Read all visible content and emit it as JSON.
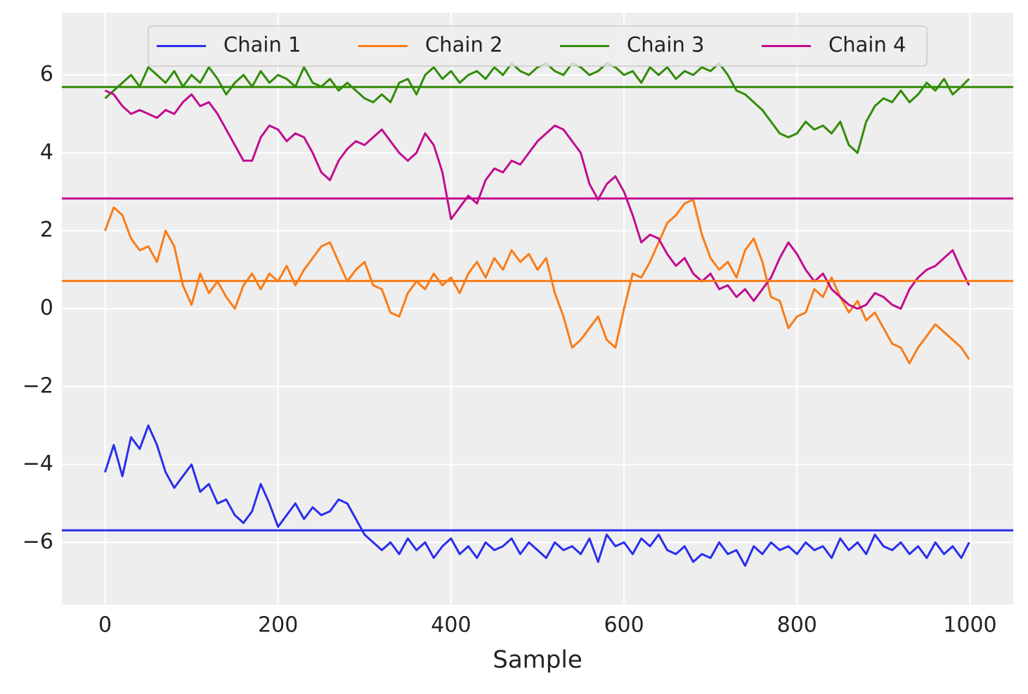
{
  "chart_data": {
    "type": "line",
    "xlabel": "Sample",
    "x": [
      0,
      10,
      20,
      30,
      40,
      50,
      60,
      70,
      80,
      90,
      100,
      110,
      120,
      130,
      140,
      150,
      160,
      170,
      180,
      190,
      200,
      210,
      220,
      230,
      240,
      250,
      260,
      270,
      280,
      290,
      300,
      310,
      320,
      330,
      340,
      350,
      360,
      370,
      380,
      390,
      400,
      410,
      420,
      430,
      440,
      450,
      460,
      470,
      480,
      490,
      500,
      510,
      520,
      530,
      540,
      550,
      560,
      570,
      580,
      590,
      600,
      610,
      620,
      630,
      640,
      650,
      660,
      670,
      680,
      690,
      700,
      710,
      720,
      730,
      740,
      750,
      760,
      770,
      780,
      790,
      800,
      810,
      820,
      830,
      840,
      850,
      860,
      870,
      880,
      890,
      900,
      910,
      920,
      930,
      940,
      950,
      960,
      970,
      980,
      990,
      999
    ],
    "series": [
      {
        "name": "Chain 1",
        "color": "#2a2eec",
        "mean": -5.69,
        "values": [
          -4.2,
          -3.5,
          -4.3,
          -3.3,
          -3.6,
          -3.0,
          -3.5,
          -4.2,
          -4.6,
          -4.3,
          -4.0,
          -4.7,
          -4.5,
          -5.0,
          -4.9,
          -5.3,
          -5.5,
          -5.2,
          -4.5,
          -5.0,
          -5.6,
          -5.3,
          -5.0,
          -5.4,
          -5.1,
          -5.3,
          -5.2,
          -4.9,
          -5.0,
          -5.4,
          -5.8,
          -6.0,
          -6.2,
          -6.0,
          -6.3,
          -5.9,
          -6.2,
          -6.0,
          -6.4,
          -6.1,
          -5.9,
          -6.3,
          -6.1,
          -6.4,
          -6.0,
          -6.2,
          -6.1,
          -5.9,
          -6.3,
          -6.0,
          -6.2,
          -6.4,
          -6.0,
          -6.2,
          -6.1,
          -6.3,
          -5.9,
          -6.5,
          -5.8,
          -6.1,
          -6.0,
          -6.3,
          -5.9,
          -6.1,
          -5.8,
          -6.2,
          -6.3,
          -6.1,
          -6.5,
          -6.3,
          -6.4,
          -6.0,
          -6.3,
          -6.2,
          -6.6,
          -6.1,
          -6.3,
          -6.0,
          -6.2,
          -6.1,
          -6.3,
          -6.0,
          -6.2,
          -6.1,
          -6.4,
          -5.9,
          -6.2,
          -6.0,
          -6.3,
          -5.8,
          -6.1,
          -6.2,
          -6.0,
          -6.3,
          -6.1,
          -6.4,
          -6.0,
          -6.3,
          -6.1,
          -6.4,
          -6.0
        ]
      },
      {
        "name": "Chain 2",
        "color": "#fa7c17",
        "mean": 0.71,
        "values": [
          2.0,
          2.6,
          2.4,
          1.8,
          1.5,
          1.6,
          1.2,
          2.0,
          1.6,
          0.6,
          0.1,
          0.9,
          0.4,
          0.7,
          0.3,
          0.0,
          0.6,
          0.9,
          0.5,
          0.9,
          0.7,
          1.1,
          0.6,
          1.0,
          1.3,
          1.6,
          1.7,
          1.2,
          0.7,
          1.0,
          1.2,
          0.6,
          0.5,
          -0.1,
          -0.2,
          0.4,
          0.7,
          0.5,
          0.9,
          0.6,
          0.8,
          0.4,
          0.9,
          1.2,
          0.8,
          1.3,
          1.0,
          1.5,
          1.2,
          1.4,
          1.0,
          1.3,
          0.4,
          -0.2,
          -1.0,
          -0.8,
          -0.5,
          -0.2,
          -0.8,
          -1.0,
          0.0,
          0.9,
          0.8,
          1.2,
          1.7,
          2.2,
          2.4,
          2.7,
          2.8,
          1.9,
          1.3,
          1.0,
          1.2,
          0.8,
          1.5,
          1.8,
          1.2,
          0.3,
          0.2,
          -0.5,
          -0.2,
          -0.1,
          0.5,
          0.3,
          0.8,
          0.3,
          -0.1,
          0.2,
          -0.3,
          -0.1,
          -0.5,
          -0.9,
          -1.0,
          -1.4,
          -1.0,
          -0.7,
          -0.4,
          -0.6,
          -0.8,
          -1.0,
          -1.3
        ]
      },
      {
        "name": "Chain 3",
        "color": "#328c06",
        "mean": 5.69,
        "values": [
          5.4,
          5.6,
          5.8,
          6.0,
          5.7,
          6.2,
          6.0,
          5.8,
          6.1,
          5.7,
          6.0,
          5.8,
          6.2,
          5.9,
          5.5,
          5.8,
          6.0,
          5.7,
          6.1,
          5.8,
          6.0,
          5.9,
          5.7,
          6.2,
          5.8,
          5.7,
          5.9,
          5.6,
          5.8,
          5.6,
          5.4,
          5.3,
          5.5,
          5.3,
          5.8,
          5.9,
          5.5,
          6.0,
          6.2,
          5.9,
          6.1,
          5.8,
          6.0,
          6.1,
          5.9,
          6.2,
          6.0,
          6.3,
          6.1,
          6.0,
          6.2,
          6.3,
          6.1,
          6.0,
          6.3,
          6.2,
          6.0,
          6.1,
          6.3,
          6.2,
          6.0,
          6.1,
          5.8,
          6.2,
          6.0,
          6.2,
          5.9,
          6.1,
          6.0,
          6.2,
          6.1,
          6.3,
          6.0,
          5.6,
          5.5,
          5.3,
          5.1,
          4.8,
          4.5,
          4.4,
          4.5,
          4.8,
          4.6,
          4.7,
          4.5,
          4.8,
          4.2,
          4.0,
          4.8,
          5.2,
          5.4,
          5.3,
          5.6,
          5.3,
          5.5,
          5.8,
          5.6,
          5.9,
          5.5,
          5.7,
          5.9
        ]
      },
      {
        "name": "Chain 4",
        "color": "#c10c90",
        "mean": 2.83,
        "values": [
          5.6,
          5.5,
          5.2,
          5.0,
          5.1,
          5.0,
          4.9,
          5.1,
          5.0,
          5.3,
          5.5,
          5.2,
          5.3,
          5.0,
          4.6,
          4.2,
          3.8,
          3.8,
          4.4,
          4.7,
          4.6,
          4.3,
          4.5,
          4.4,
          4.0,
          3.5,
          3.3,
          3.8,
          4.1,
          4.3,
          4.2,
          4.4,
          4.6,
          4.3,
          4.0,
          3.8,
          4.0,
          4.5,
          4.2,
          3.5,
          2.3,
          2.6,
          2.9,
          2.7,
          3.3,
          3.6,
          3.5,
          3.8,
          3.7,
          4.0,
          4.3,
          4.5,
          4.7,
          4.6,
          4.3,
          4.0,
          3.2,
          2.8,
          3.2,
          3.4,
          3.0,
          2.4,
          1.7,
          1.9,
          1.8,
          1.4,
          1.1,
          1.3,
          0.9,
          0.7,
          0.9,
          0.5,
          0.6,
          0.3,
          0.5,
          0.2,
          0.5,
          0.8,
          1.3,
          1.7,
          1.4,
          1.0,
          0.7,
          0.9,
          0.5,
          0.3,
          0.1,
          0.0,
          0.1,
          0.4,
          0.3,
          0.1,
          0.0,
          0.5,
          0.8,
          1.0,
          1.1,
          1.3,
          1.5,
          1.0,
          0.6
        ]
      }
    ],
    "xlim": [
      -50,
      1050
    ],
    "ylim": [
      -7.6,
      7.6
    ],
    "xticks": [
      0,
      200,
      400,
      600,
      800,
      1000
    ],
    "yticks": [
      {
        "value": -6,
        "label": "−6"
      },
      {
        "value": -4,
        "label": "−4"
      },
      {
        "value": -2,
        "label": "−2"
      },
      0,
      2,
      4,
      6
    ],
    "grid": true,
    "legend": "upper center"
  }
}
